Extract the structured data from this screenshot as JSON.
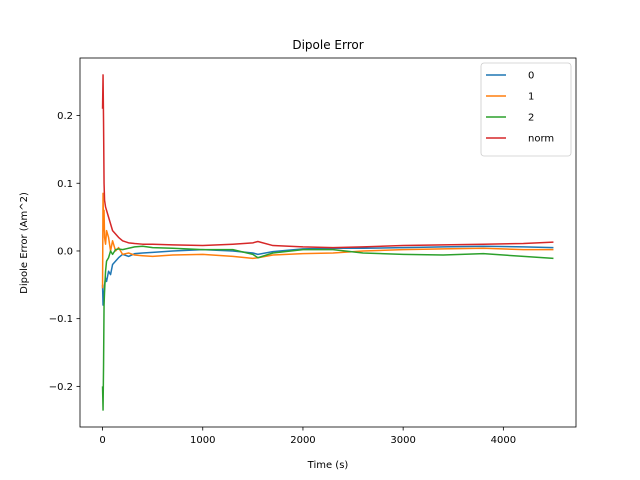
{
  "chart_data": {
    "type": "line",
    "title": "Dipole Error",
    "xlabel": "Time (s)",
    "ylabel": "Dipole Error (Am^2)",
    "xlim": [
      -225,
      4725
    ],
    "ylim": [
      -0.26,
      0.285
    ],
    "xticks": [
      0,
      1000,
      2000,
      3000,
      4000
    ],
    "yticks": [
      -0.2,
      -0.1,
      0.0,
      0.1,
      0.2
    ],
    "xtick_labels": [
      "0",
      "1000",
      "2000",
      "3000",
      "4000"
    ],
    "ytick_labels": [
      "−0.2",
      "−0.1",
      "0.0",
      "0.1",
      "0.2"
    ],
    "grid": false,
    "legend_position": "top-right",
    "series": [
      {
        "name": "0",
        "color": "#1f77b4",
        "x": [
          0,
          5,
          10,
          15,
          20,
          30,
          40,
          60,
          80,
          100,
          130,
          160,
          200,
          260,
          320,
          400,
          500,
          700,
          1000,
          1300,
          1500,
          1550,
          1700,
          2000,
          2300,
          2600,
          3000,
          3400,
          3800,
          4200,
          4500
        ],
        "y": [
          -0.05,
          -0.08,
          -0.06,
          -0.07,
          -0.05,
          -0.04,
          -0.045,
          -0.03,
          -0.035,
          -0.02,
          -0.015,
          -0.01,
          -0.005,
          -0.008,
          -0.004,
          -0.003,
          -0.002,
          0.0,
          0.002,
          0.0,
          -0.003,
          -0.005,
          -0.001,
          0.003,
          0.004,
          0.004,
          0.005,
          0.006,
          0.007,
          0.006,
          0.005
        ]
      },
      {
        "name": "1",
        "color": "#ff7f0e",
        "x": [
          0,
          5,
          10,
          15,
          20,
          30,
          40,
          60,
          80,
          100,
          130,
          160,
          200,
          260,
          320,
          400,
          500,
          700,
          1000,
          1300,
          1500,
          1550,
          1700,
          2000,
          2300,
          2600,
          3000,
          3400,
          3800,
          4200,
          4500
        ],
        "y": [
          -0.055,
          0.085,
          0.03,
          0.06,
          0.02,
          0.01,
          0.03,
          0.02,
          0.0,
          0.015,
          0.0,
          0.005,
          -0.005,
          -0.003,
          -0.006,
          -0.007,
          -0.008,
          -0.006,
          -0.005,
          -0.008,
          -0.011,
          -0.01,
          -0.006,
          -0.004,
          -0.003,
          0.0,
          0.002,
          0.003,
          0.004,
          0.002,
          0.002
        ]
      },
      {
        "name": "2",
        "color": "#2ca02c",
        "x": [
          0,
          5,
          10,
          15,
          20,
          30,
          40,
          60,
          80,
          100,
          130,
          160,
          200,
          260,
          320,
          400,
          500,
          700,
          1000,
          1300,
          1500,
          1550,
          1700,
          2000,
          2300,
          2600,
          3000,
          3400,
          3800,
          4200,
          4500
        ],
        "y": [
          -0.2,
          -0.235,
          -0.17,
          -0.08,
          -0.06,
          -0.03,
          -0.015,
          -0.01,
          0.0,
          -0.005,
          0.002,
          0.003,
          0.002,
          0.004,
          0.006,
          0.007,
          0.005,
          0.004,
          0.002,
          0.002,
          -0.005,
          -0.01,
          -0.003,
          0.002,
          0.002,
          -0.003,
          -0.005,
          -0.006,
          -0.004,
          -0.008,
          -0.011
        ]
      },
      {
        "name": "norm",
        "color": "#d62728",
        "x": [
          0,
          5,
          10,
          15,
          20,
          30,
          40,
          60,
          80,
          100,
          130,
          160,
          200,
          260,
          320,
          400,
          500,
          700,
          1000,
          1300,
          1500,
          1550,
          1700,
          2000,
          2300,
          2600,
          3000,
          3400,
          3800,
          4200,
          4500
        ],
        "y": [
          0.21,
          0.26,
          0.19,
          0.1,
          0.075,
          0.065,
          0.06,
          0.05,
          0.04,
          0.03,
          0.025,
          0.02,
          0.015,
          0.012,
          0.011,
          0.01,
          0.01,
          0.009,
          0.008,
          0.01,
          0.012,
          0.014,
          0.008,
          0.006,
          0.005,
          0.006,
          0.008,
          0.009,
          0.01,
          0.011,
          0.013
        ]
      }
    ]
  }
}
